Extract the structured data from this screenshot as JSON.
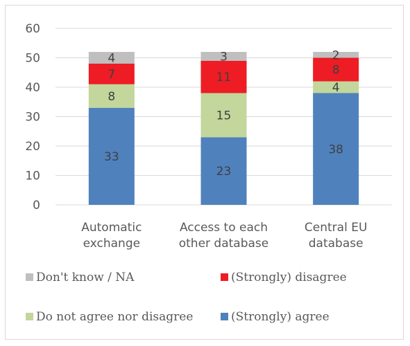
{
  "chart_data": {
    "type": "bar",
    "stacked": true,
    "categories": [
      [
        "Automatic",
        "exchange"
      ],
      [
        "Access to each",
        "other database"
      ],
      [
        "Central EU",
        "database"
      ]
    ],
    "series": [
      {
        "name": "(Strongly) agree",
        "color": "#4f81bd",
        "values": [
          33,
          23,
          38
        ]
      },
      {
        "name": "Do not agree nor disagree",
        "color": "#c3d69b",
        "values": [
          8,
          15,
          4
        ]
      },
      {
        "name": "(Strongly) disagree",
        "color": "#ee1c24",
        "values": [
          7,
          11,
          8
        ]
      },
      {
        "name": "Don't know / NA",
        "color": "#bfbfbf",
        "values": [
          4,
          3,
          2
        ]
      }
    ],
    "ylim": [
      0,
      60
    ],
    "yticks": [
      0,
      10,
      20,
      30,
      40,
      50,
      60
    ],
    "grid": true,
    "legend_position": "bottom",
    "legend_order": [
      "Don't know / NA",
      "(Strongly) disagree",
      "Do not agree nor disagree",
      "(Strongly) agree"
    ]
  }
}
